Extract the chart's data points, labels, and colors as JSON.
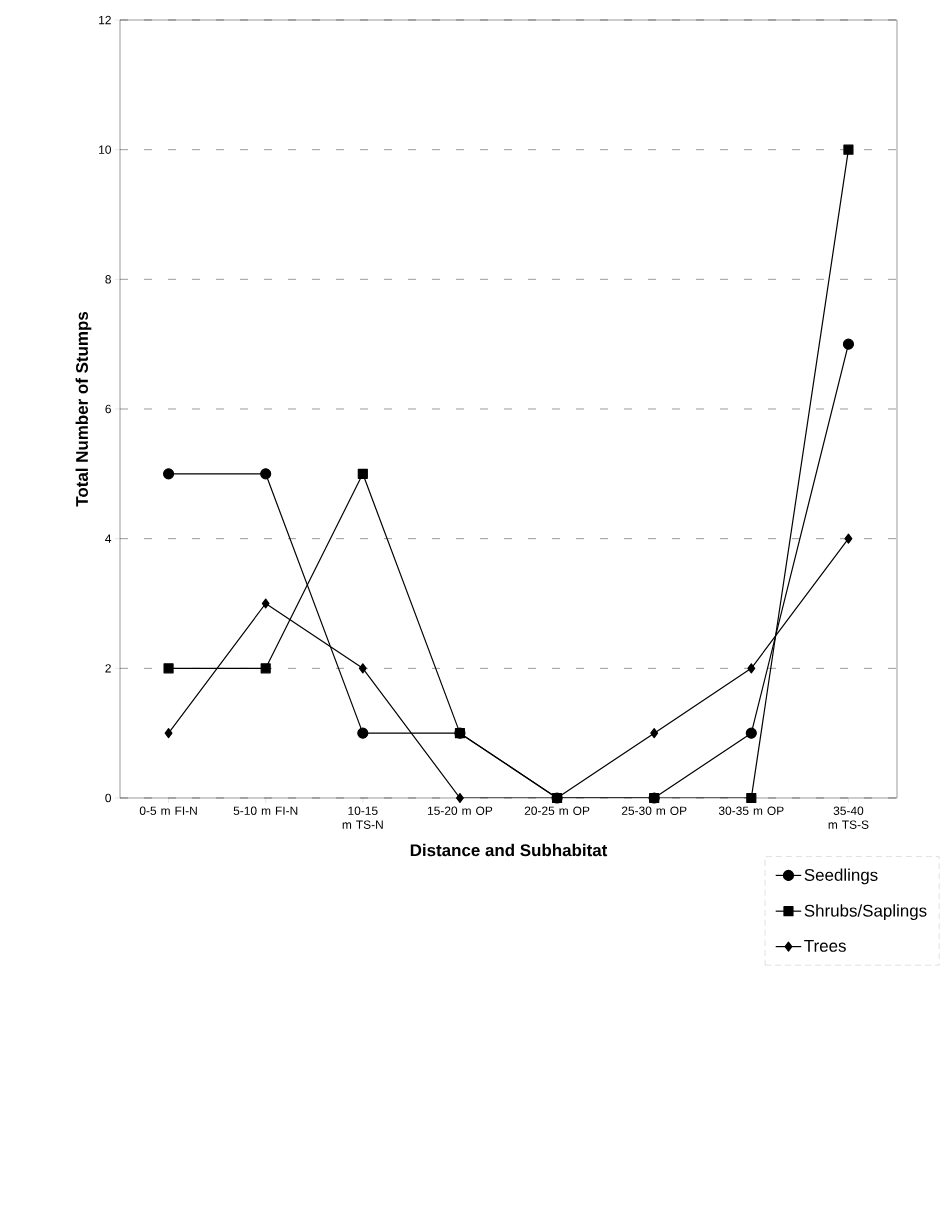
{
  "chart_data": {
    "type": "line",
    "xlabel": "Distance and Subhabitat",
    "ylabel": "Total Number of Stumps",
    "categories": [
      "0-5 m FI-N",
      "5-10 m FI-N",
      "10-15 m TS-N",
      "15-20 m OP",
      "20-25 m OP",
      "25-30 m OP",
      "30-35 m OP",
      "35-40 m TS-S"
    ],
    "series": [
      {
        "name": "Seedlings",
        "color": "#000000",
        "marker": "circle",
        "values": [
          5,
          5,
          1,
          1,
          0,
          0,
          1,
          7
        ]
      },
      {
        "name": "Shrubs/Saplings",
        "color": "#000000",
        "marker": "square",
        "values": [
          2,
          2,
          5,
          1,
          0,
          0,
          0,
          10
        ]
      },
      {
        "name": "Trees",
        "color": "#000000",
        "marker": "diamond",
        "values": [
          1,
          3,
          2,
          0,
          0,
          1,
          2,
          4
        ]
      }
    ],
    "ylim": [
      0,
      12
    ],
    "yticks": [
      0,
      2,
      4,
      6,
      8,
      10,
      12
    ],
    "grid": "y",
    "legend": "bottom right"
  }
}
